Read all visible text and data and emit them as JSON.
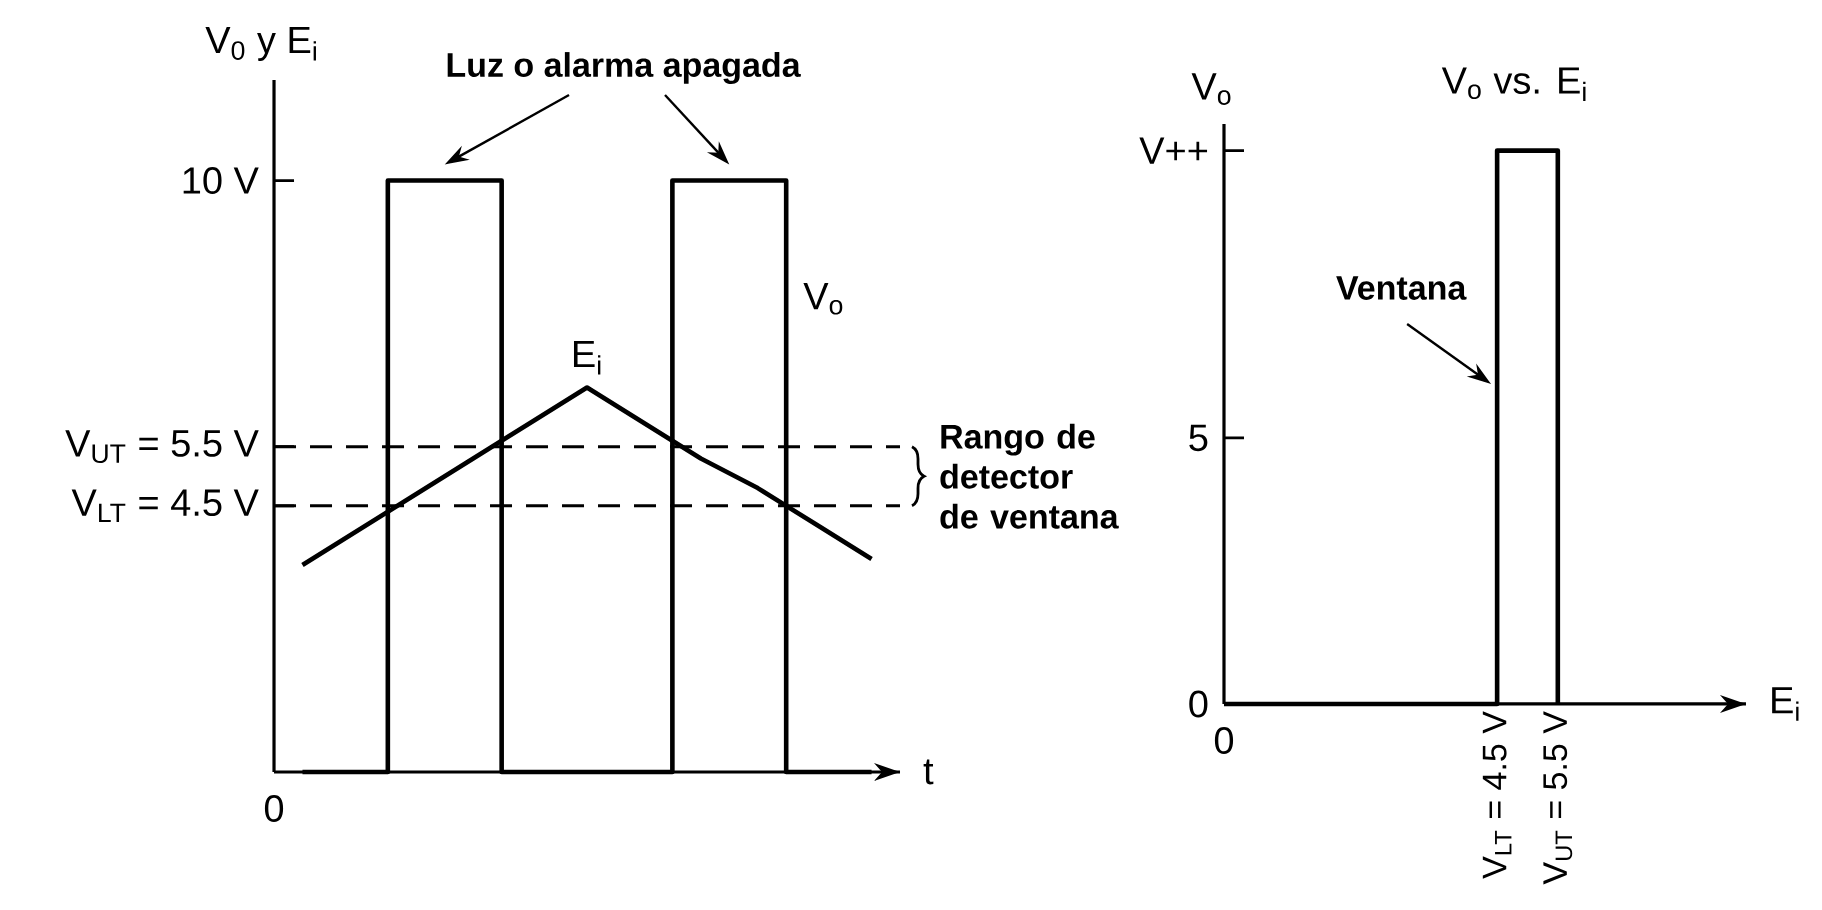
{
  "chart_data": [
    {
      "type": "line",
      "xlabel": "t",
      "ylabel": "V$_{0}$ y E$_{i}$",
      "categories": [
        null,
        null,
        null,
        null,
        null,
        null,
        null,
        null,
        null,
        null,
        null
      ],
      "ylim": [
        0,
        11.7
      ],
      "yticks": [
        {
          "value": 4.5,
          "label": "V$_{LT}$ = 4.5 V"
        },
        {
          "value": 5.5,
          "label": "V$_{UT}$ = 5.5 V"
        },
        {
          "value": 10,
          "label": "10 V"
        }
      ],
      "series": [
        {
          "name": "V$_{o}$",
          "type": "step",
          "color": "#000000",
          "values": [
            0,
            0,
            10,
            10,
            0,
            0,
            0,
            10,
            10,
            0,
            0
          ]
        },
        {
          "name": "E$_{i}$",
          "color": "#000000",
          "values": [
            3.5,
            4.1,
            4.7,
            5.3,
            5.9,
            6.5,
            5.9,
            5.3,
            4.8,
            4.2,
            3.6
          ]
        }
      ],
      "ref_lines": [
        {
          "axis": "y",
          "value": 5.5,
          "line_style": "dashed"
        },
        {
          "axis": "y",
          "value": 4.5,
          "line_style": "dashed"
        }
      ],
      "annotations": [
        "Luz o alarma apagada",
        "Rango de detector de ventana",
        "0"
      ]
    },
    {
      "type": "step",
      "title": "V$_{o}$ vs. E$_{i}$",
      "xlabel": "E$_{i}$",
      "ylabel": "V$_{o}$",
      "xlim": [
        0,
        8.6
      ],
      "ylim": [
        0,
        10.9
      ],
      "xticks": [
        {
          "value": 4.5,
          "label": "V$_{LT}$ = 4.5 V"
        },
        {
          "value": 5.5,
          "label": "V$_{UT}$ = 5.5 V"
        }
      ],
      "yticks": [
        0,
        5,
        {
          "value": 10.4,
          "label": "V++"
        }
      ],
      "series": [
        {
          "color": "#000000",
          "x": [
            0,
            4.5,
            5.5
          ],
          "values": [
            0,
            10.4,
            0
          ]
        }
      ],
      "annotations": [
        {
          "text": "Ventana",
          "x": 4.5,
          "y": 5.9
        },
        "0"
      ]
    }
  ]
}
